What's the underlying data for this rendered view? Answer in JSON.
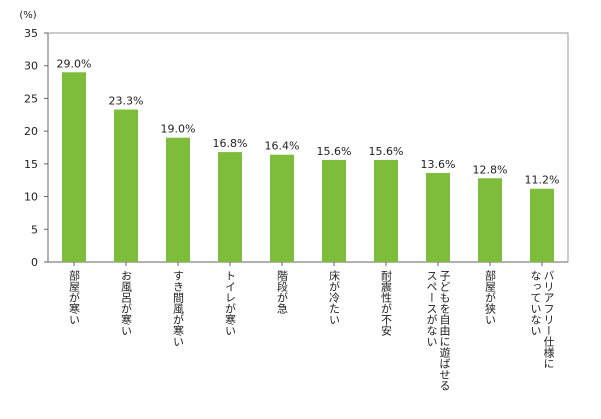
{
  "colors": {
    "bar": "#7dbd3b",
    "axis": "#666666",
    "plot_border": "#999999",
    "text": "#222222"
  },
  "chart_data": {
    "type": "bar",
    "title": "",
    "xlabel": "",
    "ylabel": "(%)",
    "ylim": [
      0,
      35
    ],
    "yticks": [
      0,
      5,
      10,
      15,
      20,
      25,
      30,
      35
    ],
    "grid": false,
    "categories": [
      "部屋が寒い",
      "お風呂が寒い",
      "すき間風が寒い",
      "トイレが寒い",
      "階段が急",
      "床が冷たい",
      "耐震性が不安",
      "子どもを自由に遊ばせるスペースがない",
      "部屋が狭い",
      "バリアフリー仕様になっていない"
    ],
    "category_lines": [
      [
        "部屋が寒い"
      ],
      [
        "お風呂が寒い"
      ],
      [
        "すき間風が寒い"
      ],
      [
        "トイレが寒い"
      ],
      [
        "階段が急"
      ],
      [
        "床が冷たい"
      ],
      [
        "耐震性が不安"
      ],
      [
        "子どもを自由に遊ばせる",
        "スペースがない"
      ],
      [
        "部屋が狭い"
      ],
      [
        "バリアフリー仕様に",
        "なっていない"
      ]
    ],
    "values": [
      29.0,
      23.3,
      19.0,
      16.8,
      16.4,
      15.6,
      15.6,
      13.6,
      12.8,
      11.2
    ],
    "value_labels": [
      "29.0%",
      "23.3%",
      "19.0%",
      "16.8%",
      "16.4%",
      "15.6%",
      "15.6%",
      "13.6%",
      "12.8%",
      "11.2%"
    ]
  }
}
